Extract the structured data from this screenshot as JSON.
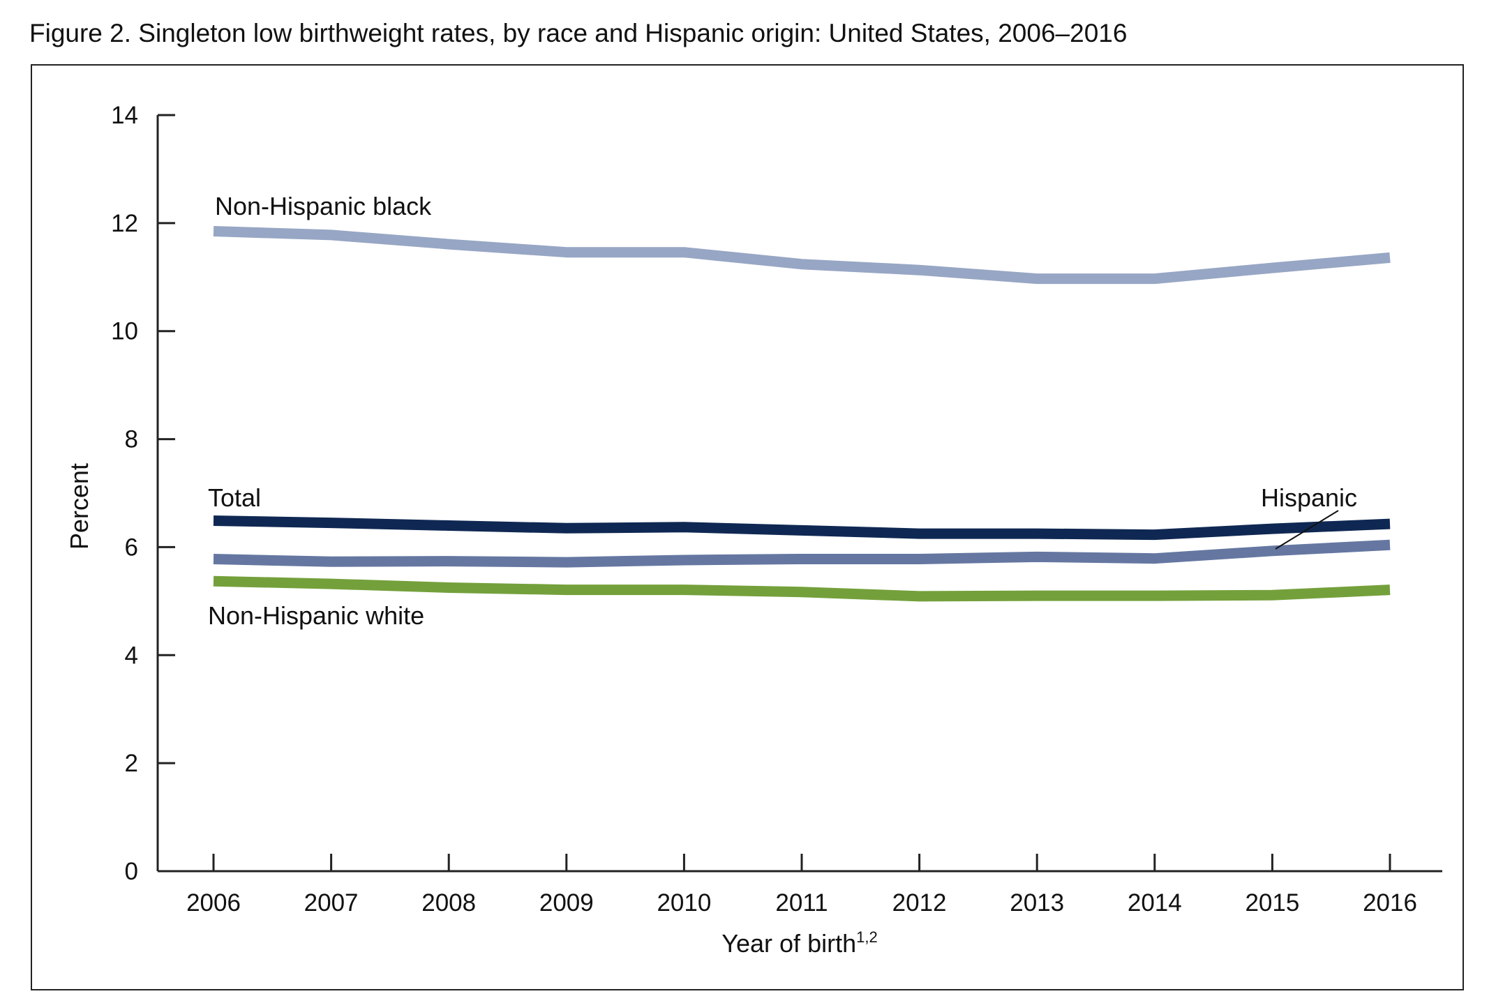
{
  "title": "Figure 2. Singleton low birthweight rates, by race and Hispanic origin: United States, 2006–2016",
  "chart_data": {
    "type": "line",
    "title": "Figure 2. Singleton low birthweight rates, by race and Hispanic origin: United States, 2006–2016",
    "xlabel": "Year of birth",
    "xlabel_superscript": "1,2",
    "ylabel": "Percent",
    "ylim": [
      0,
      14
    ],
    "yticks": [
      0,
      2,
      4,
      6,
      8,
      10,
      12,
      14
    ],
    "yticks_labels": [
      "0",
      "2",
      "4",
      "6",
      "8",
      "10",
      "12",
      "14"
    ],
    "x": [
      "2006",
      "2007",
      "2008",
      "2009",
      "2010",
      "2011",
      "2012",
      "2013",
      "2014",
      "2015",
      "2016"
    ],
    "grid": false,
    "legend": "inline labels",
    "series": [
      {
        "name": "Non-Hispanic black",
        "color": "#97a6c4",
        "values": [
          11.85,
          11.78,
          11.61,
          11.46,
          11.46,
          11.24,
          11.13,
          10.97,
          10.97,
          11.17,
          11.36
        ]
      },
      {
        "name": "Total",
        "color": "#0f2853",
        "values": [
          6.49,
          6.45,
          6.4,
          6.35,
          6.37,
          6.31,
          6.25,
          6.25,
          6.23,
          6.34,
          6.43
        ]
      },
      {
        "name": "Hispanic",
        "color": "#6577a1",
        "values": [
          5.78,
          5.73,
          5.74,
          5.72,
          5.76,
          5.78,
          5.78,
          5.82,
          5.79,
          5.93,
          6.04
        ]
      },
      {
        "name": "Non-Hispanic white",
        "color": "#74a03b",
        "values": [
          5.37,
          5.32,
          5.25,
          5.21,
          5.21,
          5.17,
          5.09,
          5.1,
          5.1,
          5.11,
          5.21
        ]
      }
    ]
  }
}
